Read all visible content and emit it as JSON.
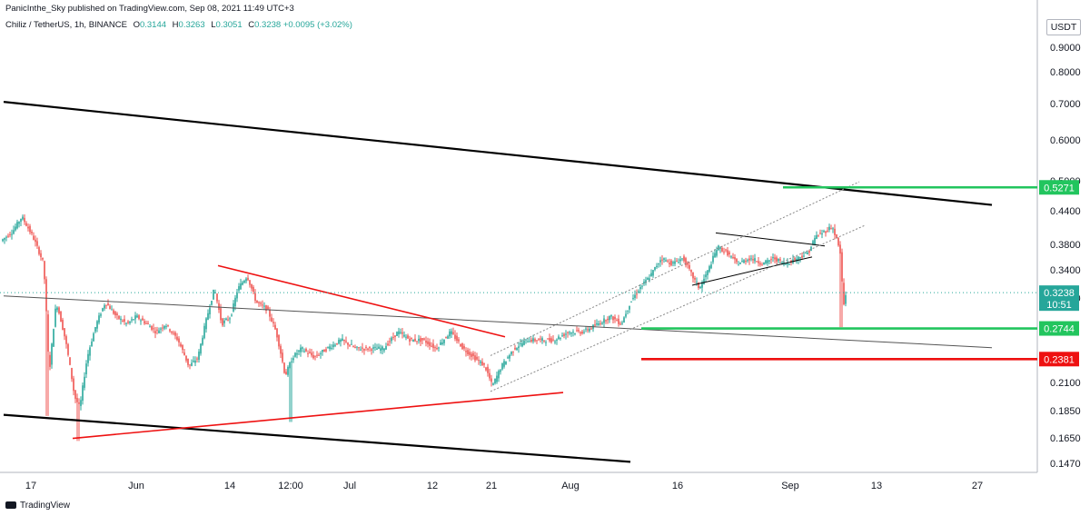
{
  "header": {
    "published": "PanicInthe_Sky published on TradingView.com, Sep 08, 2021 11:49 UTC+3",
    "symbol": "Chiliz / TetherUS, 1h, BINANCE",
    "open_label": "O",
    "open": "0.3144",
    "high_label": "H",
    "high": "0.3263",
    "low_label": "L",
    "low": "0.3051",
    "close_label": "C",
    "close": "0.3238",
    "change": "+0.0095 (+3.02%)"
  },
  "currency": "USDT",
  "footer": {
    "brand": "TradingView"
  },
  "colors": {
    "up": "#26a69a",
    "down": "#ef5350",
    "green_level": "#22c55e",
    "red_level": "#ee1111",
    "trend": "#000000"
  },
  "chart_data": {
    "type": "candlestick",
    "interval": "1h",
    "y_scale": "log",
    "ylim": [
      0.138,
      1.05
    ],
    "y_ticks": [
      "0.9000",
      "0.8000",
      "0.7000",
      "0.6000",
      "0.5000",
      "0.4400",
      "0.3800",
      "0.3400",
      "0.3000",
      "0.2100",
      "0.1850",
      "0.1650",
      "0.1470"
    ],
    "x_ticks": [
      "17",
      "Jun",
      "14",
      "12:00",
      "Jul",
      "12",
      "21",
      "Aug",
      "16",
      "Sep",
      "13",
      "27"
    ],
    "price_levels": [
      {
        "value": 0.5271,
        "label": "0.5271",
        "color": "#22c55e"
      },
      {
        "value": 0.2744,
        "label": "0.2744",
        "color": "#22c55e"
      },
      {
        "value": 0.2381,
        "label": "0.2381",
        "color": "#ee1111"
      }
    ],
    "last_price": {
      "value": 0.3238,
      "label": "0.3238",
      "countdown": "10:51"
    },
    "price_path": [
      [
        0,
        0.41
      ],
      [
        14,
        0.43
      ],
      [
        24,
        0.46
      ],
      [
        36,
        0.42
      ],
      [
        48,
        0.37
      ],
      [
        54,
        0.22
      ],
      [
        62,
        0.31
      ],
      [
        72,
        0.26
      ],
      [
        82,
        0.2
      ],
      [
        88,
        0.19
      ],
      [
        96,
        0.24
      ],
      [
        106,
        0.28
      ],
      [
        116,
        0.31
      ],
      [
        128,
        0.29
      ],
      [
        140,
        0.28
      ],
      [
        150,
        0.29
      ],
      [
        162,
        0.28
      ],
      [
        172,
        0.27
      ],
      [
        182,
        0.28
      ],
      [
        196,
        0.26
      ],
      [
        208,
        0.23
      ],
      [
        218,
        0.24
      ],
      [
        228,
        0.29
      ],
      [
        236,
        0.33
      ],
      [
        244,
        0.28
      ],
      [
        254,
        0.29
      ],
      [
        262,
        0.33
      ],
      [
        272,
        0.35
      ],
      [
        282,
        0.31
      ],
      [
        294,
        0.3
      ],
      [
        304,
        0.27
      ],
      [
        314,
        0.22
      ],
      [
        322,
        0.24
      ],
      [
        332,
        0.25
      ],
      [
        346,
        0.24
      ],
      [
        360,
        0.25
      ],
      [
        376,
        0.26
      ],
      [
        392,
        0.25
      ],
      [
        408,
        0.25
      ],
      [
        422,
        0.25
      ],
      [
        438,
        0.27
      ],
      [
        452,
        0.26
      ],
      [
        466,
        0.26
      ],
      [
        480,
        0.25
      ],
      [
        496,
        0.27
      ],
      [
        510,
        0.25
      ],
      [
        522,
        0.24
      ],
      [
        534,
        0.23
      ],
      [
        542,
        0.21
      ],
      [
        552,
        0.23
      ],
      [
        566,
        0.25
      ],
      [
        580,
        0.26
      ],
      [
        594,
        0.26
      ],
      [
        610,
        0.26
      ],
      [
        626,
        0.27
      ],
      [
        642,
        0.27
      ],
      [
        658,
        0.28
      ],
      [
        672,
        0.29
      ],
      [
        684,
        0.28
      ],
      [
        694,
        0.31
      ],
      [
        704,
        0.33
      ],
      [
        716,
        0.35
      ],
      [
        728,
        0.38
      ],
      [
        740,
        0.37
      ],
      [
        752,
        0.38
      ],
      [
        762,
        0.35
      ],
      [
        770,
        0.33
      ],
      [
        780,
        0.36
      ],
      [
        790,
        0.4
      ],
      [
        800,
        0.39
      ],
      [
        812,
        0.37
      ],
      [
        826,
        0.38
      ],
      [
        840,
        0.37
      ],
      [
        852,
        0.38
      ],
      [
        864,
        0.37
      ],
      [
        878,
        0.38
      ],
      [
        890,
        0.39
      ],
      [
        898,
        0.42
      ],
      [
        908,
        0.43
      ],
      [
        916,
        0.44
      ],
      [
        922,
        0.41
      ],
      [
        926,
        0.38
      ],
      [
        928,
        0.3
      ],
      [
        931,
        0.32
      ]
    ],
    "trendlines": [
      {
        "name": "upper-channel",
        "color": "#000000",
        "width": 2.2,
        "x": [
          4,
          1092
        ],
        "y": [
          0.783,
          0.486
        ]
      },
      {
        "name": "lower-channel",
        "color": "#000000",
        "width": 2.2,
        "x": [
          4,
          694
        ],
        "y": [
          0.184,
          0.148
        ]
      },
      {
        "name": "mid-trendline",
        "color": "#555555",
        "width": 1,
        "x": [
          4,
          1092
        ],
        "y": [
          0.319,
          0.251
        ]
      },
      {
        "name": "red-descending",
        "color": "#ee1111",
        "width": 1.6,
        "x": [
          240,
          556
        ],
        "y": [
          0.367,
          0.264
        ]
      },
      {
        "name": "red-ascending",
        "color": "#ee1111",
        "width": 1.6,
        "x": [
          80,
          620
        ],
        "y": [
          0.165,
          0.204
        ]
      },
      {
        "name": "flag-top",
        "color": "#000000",
        "width": 1,
        "x": [
          788,
          908
        ],
        "y": [
          0.427,
          0.402
        ]
      },
      {
        "name": "flag-bottom",
        "color": "#000000",
        "width": 1,
        "x": [
          762,
          894
        ],
        "y": [
          0.335,
          0.382
        ]
      },
      {
        "name": "dotted-channel-upper",
        "color": "#888888",
        "width": 1,
        "dash": "2,2",
        "x": [
          540,
          946
        ],
        "y": [
          0.242,
          0.541
        ]
      },
      {
        "name": "dotted-channel-lower",
        "color": "#888888",
        "width": 1,
        "dash": "2,2",
        "x": [
          540,
          952
        ],
        "y": [
          0.205,
          0.442
        ]
      }
    ],
    "level_segments": [
      {
        "name": "green-level-top",
        "color": "#22c55e",
        "x": [
          862,
          1142
        ],
        "value": 0.5271
      },
      {
        "name": "green-level-mid",
        "color": "#22c55e",
        "x": [
          706,
          1142
        ],
        "value": 0.2744
      },
      {
        "name": "red-level",
        "color": "#ee1111",
        "x": [
          706,
          1142
        ],
        "value": 0.2381
      }
    ]
  }
}
